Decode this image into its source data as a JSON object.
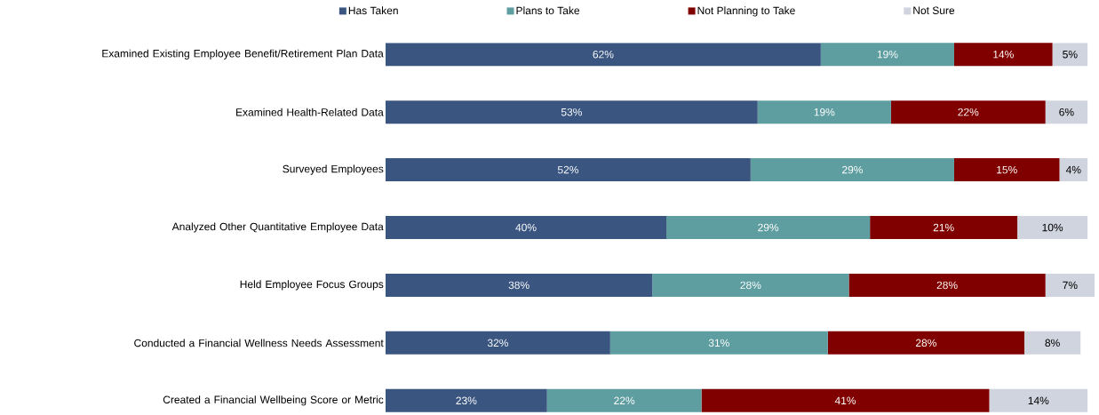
{
  "chart_data": {
    "type": "bar",
    "orientation": "horizontal",
    "stacked": true,
    "legend": "top",
    "xlim": [
      0,
      101
    ],
    "categories": [
      "Examined Existing Employee Benefit/Retirement Plan Data",
      "Examined Health-Related Data",
      "Surveyed Employees",
      "Analyzed Other Quantitative Employee Data",
      "Held Employee Focus Groups",
      "Conducted a Financial Wellness Needs Assessment",
      "Created a Financial Wellbeing Score or Metric"
    ],
    "series": [
      {
        "name": "Has Taken",
        "color": "#3a5680",
        "values": [
          62,
          53,
          52,
          40,
          38,
          32,
          23
        ],
        "value_labels": [
          "62%",
          "53%",
          "52%",
          "40%",
          "38%",
          "32%",
          "23%"
        ]
      },
      {
        "name": "Plans to Take",
        "color": "#5f9ea0",
        "values": [
          19,
          19,
          29,
          29,
          28,
          31,
          22
        ],
        "value_labels": [
          "19%",
          "19%",
          "29%",
          "29%",
          "28%",
          "31%",
          "22%"
        ]
      },
      {
        "name": "Not Planning to Take",
        "color": "#800000",
        "values": [
          14,
          22,
          15,
          21,
          28,
          28,
          41
        ],
        "value_labels": [
          "14%",
          "22%",
          "15%",
          "21%",
          "28%",
          "28%",
          "41%"
        ]
      },
      {
        "name": "Not Sure",
        "color": "#d0d4de",
        "values": [
          5,
          6,
          4,
          10,
          7,
          8,
          14
        ],
        "value_labels": [
          "5%",
          "6%",
          "4%",
          "10%",
          "7%",
          "8%",
          "14%"
        ]
      }
    ]
  }
}
